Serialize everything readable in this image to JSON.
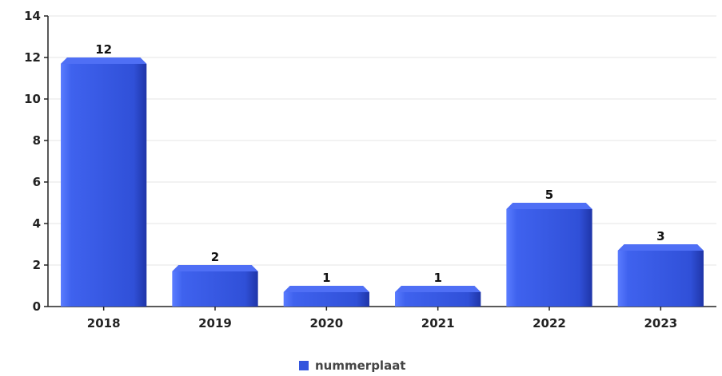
{
  "chart_data": {
    "type": "bar",
    "categories": [
      "2018",
      "2019",
      "2020",
      "2021",
      "2022",
      "2023"
    ],
    "series": [
      {
        "name": "nummerplaat",
        "values": [
          12,
          2,
          1,
          1,
          5,
          3
        ]
      }
    ],
    "ylim": [
      0,
      14
    ],
    "yticks": [
      0,
      2,
      4,
      6,
      8,
      10,
      12,
      14
    ],
    "grid": true,
    "legend_position": "bottom",
    "colors": {
      "bar": "#3355dd",
      "bar_light": "#5a7cff",
      "bar_dark": "#1f35a8"
    }
  }
}
